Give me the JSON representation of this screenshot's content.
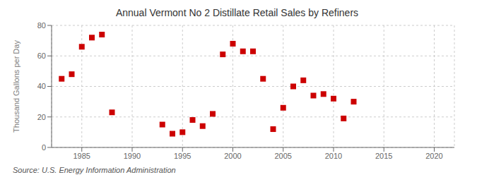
{
  "chart_data": {
    "type": "scatter",
    "title": "Annual Vermont No 2 Distillate Retail Sales by Refiners",
    "ylabel": "Thousand Gallons per Day",
    "annotations": [
      "Source: U.S. Energy Information Administration"
    ],
    "x": [
      1983,
      1984,
      1985,
      1986,
      1987,
      1988,
      1993,
      1994,
      1995,
      1996,
      1997,
      1998,
      1999,
      2000,
      2001,
      2002,
      2003,
      2004,
      2005,
      2006,
      2007,
      2008,
      2009,
      2010,
      2011,
      2012
    ],
    "values": [
      45,
      48,
      66,
      72,
      74,
      23,
      15,
      9,
      10,
      18,
      14,
      22,
      61,
      68,
      63,
      63,
      45,
      12,
      26,
      40,
      44,
      34,
      35,
      32,
      19,
      30
    ],
    "color": "#cc0000",
    "marker": "square",
    "xlim": [
      1982,
      2022
    ],
    "ylim": [
      0,
      80
    ],
    "xticks": [
      1985,
      1990,
      1995,
      2000,
      2005,
      2010,
      2015,
      2020
    ],
    "yticks": [
      0,
      20,
      40,
      60,
      80
    ],
    "grid": true
  }
}
